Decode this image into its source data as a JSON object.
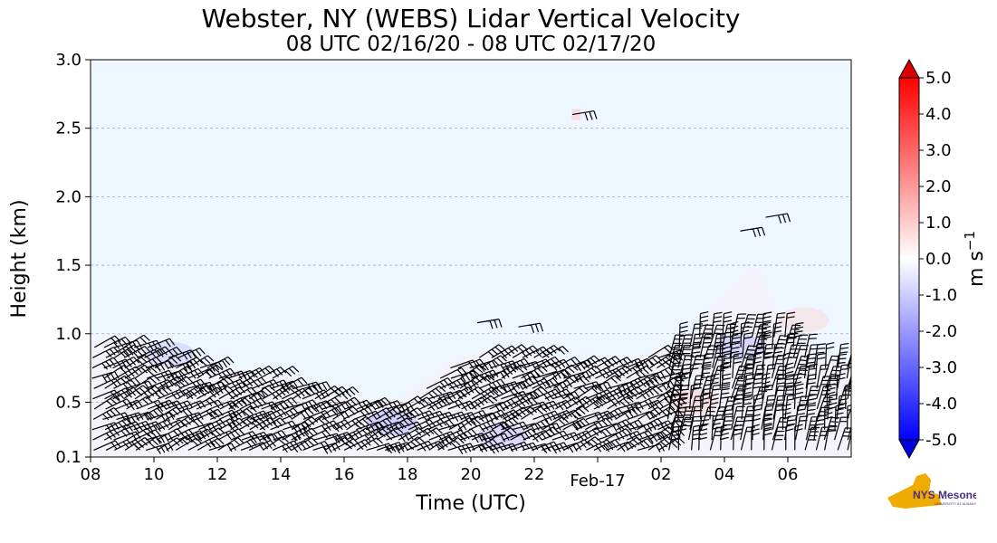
{
  "chart_data": {
    "type": "heatmap",
    "title": "Webster, NY (WEBS) Lidar Vertical Velocity",
    "subtitle": "08 UTC 02/16/20 - 08 UTC 02/17/20",
    "xlabel": "Time (UTC)",
    "ylabel": "Height (km)",
    "x_ticks": [
      "08",
      "10",
      "12",
      "14",
      "16",
      "18",
      "20",
      "22",
      "Feb-17",
      "02",
      "04",
      "06"
    ],
    "x_range_hours": [
      0,
      24
    ],
    "y_ticks": [
      0.1,
      0.5,
      1.0,
      1.5,
      2.0,
      2.5,
      3.0
    ],
    "y_tick_labels": [
      "0.1",
      "0.5",
      "1.0",
      "1.5",
      "2.0",
      "2.5",
      "3.0"
    ],
    "ylim": [
      0.1,
      3.0
    ],
    "grid": "horizontal dashed",
    "background_color": "#eef7ff",
    "colorbar": {
      "label": "m s",
      "label_exponent": "−1",
      "min": -5.0,
      "max": 5.0,
      "tick_values": [
        5,
        4,
        3,
        2,
        1,
        0,
        -1,
        -2,
        -3,
        -4,
        -5
      ],
      "tick_labels": [
        "5.0",
        "4.0",
        "3.0",
        "2.0",
        "1.0",
        "0.0",
        "-1.0",
        "-2.0",
        "-3.0",
        "-4.0",
        "-5.0"
      ],
      "colors": [
        "#0000ff",
        "#ffffff",
        "#ff0000"
      ]
    },
    "data_top_km": [
      [
        0.0,
        0.95
      ],
      [
        1.0,
        0.98
      ],
      [
        2.0,
        0.92
      ],
      [
        3.0,
        0.85
      ],
      [
        4.0,
        0.78
      ],
      [
        5.0,
        0.72
      ],
      [
        6.0,
        0.7
      ],
      [
        7.0,
        0.62
      ],
      [
        8.0,
        0.55
      ],
      [
        9.0,
        0.5
      ],
      [
        10.0,
        0.55
      ],
      [
        11.0,
        0.75
      ],
      [
        12.0,
        0.85
      ],
      [
        13.0,
        0.9
      ],
      [
        14.0,
        0.88
      ],
      [
        15.0,
        0.8
      ],
      [
        16.0,
        0.78
      ],
      [
        17.0,
        0.8
      ],
      [
        18.0,
        0.9
      ],
      [
        19.0,
        1.0
      ],
      [
        20.0,
        1.3
      ],
      [
        21.0,
        1.5
      ],
      [
        22.0,
        1.0
      ],
      [
        23.0,
        0.8
      ],
      [
        24.0,
        0.8
      ]
    ],
    "isolated_return": {
      "hour": 15.3,
      "height_km": 2.6
    }
  },
  "logo": {
    "text": "NYS Mesonet",
    "subtext": "UNIVERSITY AT ALBANY",
    "colors": {
      "state": "#f0ab00",
      "text": "#4b2e83"
    }
  }
}
